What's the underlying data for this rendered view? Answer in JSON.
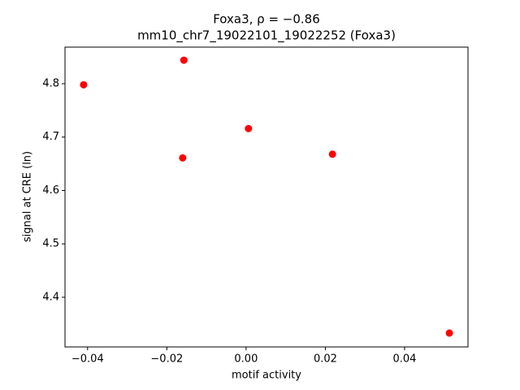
{
  "chart_data": {
    "type": "scatter",
    "title": "Foxa3, ρ = −0.86",
    "subtitle": "mm10_chr7_19022101_19022252 (Foxa3)",
    "x_label": "motif activity",
    "y_label": "signal at CRE (ln)",
    "color": "#ff0000",
    "x": [
      -0.041,
      -0.0157,
      -0.016,
      0.0006,
      0.0218,
      0.0513
    ],
    "values": [
      4.798,
      4.844,
      4.661,
      4.716,
      4.668,
      4.333
    ],
    "xlim": [
      -0.0457,
      0.056
    ],
    "ylim": [
      4.307,
      4.8685
    ],
    "xticks": [
      {
        "value": -0.04,
        "label": "−0.04"
      },
      {
        "value": -0.02,
        "label": "−0.02"
      },
      {
        "value": 0,
        "label": "0.00"
      },
      {
        "value": 0.02,
        "label": "0.02"
      },
      {
        "value": 0.04,
        "label": "0.04"
      }
    ],
    "yticks": [
      4.4,
      4.5,
      4.6,
      4.7,
      4.8
    ]
  }
}
